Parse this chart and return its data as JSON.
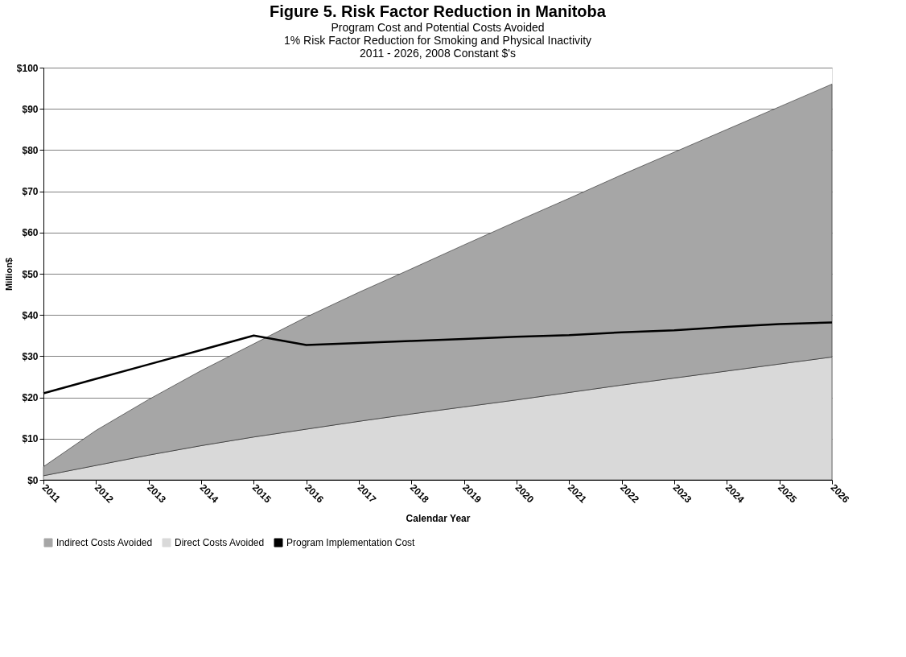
{
  "chart_data": {
    "type": "area",
    "title": "Figure 5. Risk Factor Reduction in Manitoba",
    "subtitle": "Program Cost and Potential Costs Avoided",
    "annotations": [
      "1% Risk Factor Reduction for Smoking and Physical Inactivity",
      "2011 - 2026, 2008 Constant $'s"
    ],
    "xlabel": "Calendar Year",
    "ylabel": "Million$",
    "categories": [
      "2011",
      "2012",
      "2013",
      "2014",
      "2015",
      "2016",
      "2017",
      "2018",
      "2019",
      "2020",
      "2021",
      "2022",
      "2023",
      "2024",
      "2025",
      "2026"
    ],
    "stacked": true,
    "series": [
      {
        "name": "Direct Costs Avoided",
        "color": "#d9d9d9",
        "values": [
          1,
          3.5,
          6,
          8.3,
          10.4,
          12.3,
          14.2,
          16,
          17.7,
          19.4,
          21.2,
          23,
          24.7,
          26.4,
          28.1,
          29.8
        ]
      },
      {
        "name": "Indirect Costs Avoided",
        "color": "#a6a6a6",
        "values": [
          2.2,
          8.5,
          13.5,
          18.2,
          22.6,
          27.2,
          31.3,
          35.2,
          39.3,
          43.3,
          47.1,
          51,
          54.8,
          58.6,
          62.4,
          66.2
        ]
      },
      {
        "name": "Program Implementation Cost",
        "type": "line",
        "color": "#000000",
        "values": [
          21,
          24.5,
          28,
          31.5,
          35,
          32.7,
          33.2,
          33.7,
          34.2,
          34.7,
          35.1,
          35.8,
          36.3,
          37.1,
          37.8,
          38.2
        ]
      }
    ],
    "ylim": [
      0,
      100
    ],
    "yticks": [
      {
        "value": 0,
        "label": "$0"
      },
      {
        "value": 10,
        "label": "$10"
      },
      {
        "value": 20,
        "label": "$20"
      },
      {
        "value": 30,
        "label": "$30"
      },
      {
        "value": 40,
        "label": "$40"
      },
      {
        "value": 50,
        "label": "$50"
      },
      {
        "value": 60,
        "label": "$60"
      },
      {
        "value": 70,
        "label": "$70"
      },
      {
        "value": 80,
        "label": "$80"
      },
      {
        "value": 90,
        "label": "$90"
      },
      {
        "value": 100,
        "label": "$100"
      }
    ],
    "grid": "y",
    "legend": "bottom",
    "marker": "none",
    "line_style": "solid"
  }
}
